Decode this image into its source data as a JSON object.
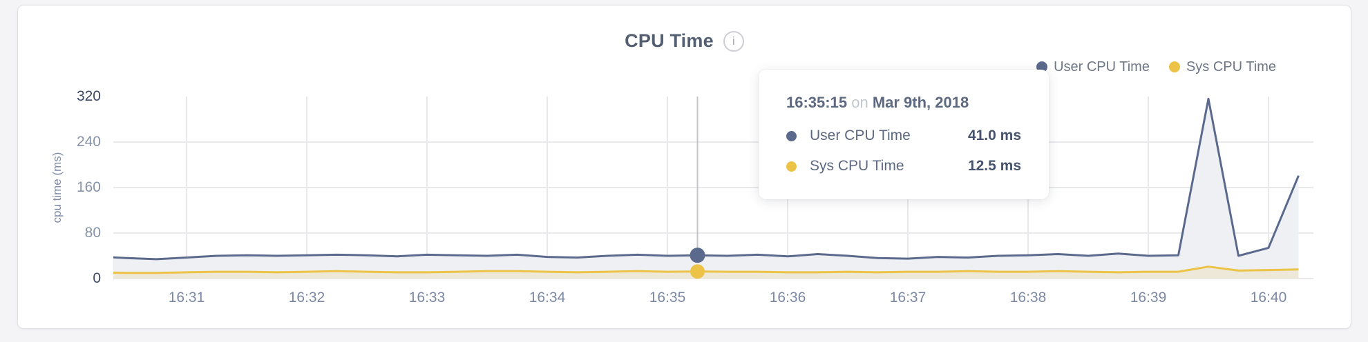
{
  "header": {
    "title": "CPU Time"
  },
  "legend": {
    "items": [
      {
        "label": "User CPU Time",
        "color": "#5b6a8c"
      },
      {
        "label": "Sys CPU Time",
        "color": "#ecc347"
      }
    ]
  },
  "y_axis": {
    "title": "cpu time (ms)",
    "ticks": [
      0,
      80,
      160,
      240,
      320
    ]
  },
  "x_axis": {
    "ticks": [
      "16:31",
      "16:32",
      "16:33",
      "16:34",
      "16:35",
      "16:36",
      "16:37",
      "16:38",
      "16:39",
      "16:40"
    ]
  },
  "tooltip": {
    "time": "16:35:15",
    "separator": "on",
    "date": "Mar 9th, 2018",
    "rows": [
      {
        "label": "User CPU Time",
        "value": "41.0 ms",
        "color": "#5b6a8c"
      },
      {
        "label": "Sys CPU Time",
        "value": "12.5 ms",
        "color": "#ecc347"
      }
    ]
  },
  "chart_data": {
    "type": "area",
    "title": "CPU Time",
    "ylabel": "cpu time (ms)",
    "ylim": [
      0,
      320
    ],
    "y_ticks": [
      0,
      80,
      160,
      240,
      320
    ],
    "x_tick_labels": [
      "16:31",
      "16:32",
      "16:33",
      "16:34",
      "16:35",
      "16:36",
      "16:37",
      "16:38",
      "16:39",
      "16:40"
    ],
    "date": "Mar 9th, 2018",
    "grid": true,
    "legend_position": "top-right",
    "times": [
      "16:30:15",
      "16:30:30",
      "16:30:45",
      "16:31:00",
      "16:31:15",
      "16:31:30",
      "16:31:45",
      "16:32:00",
      "16:32:15",
      "16:32:30",
      "16:32:45",
      "16:33:00",
      "16:33:15",
      "16:33:30",
      "16:33:45",
      "16:34:00",
      "16:34:15",
      "16:34:30",
      "16:34:45",
      "16:35:00",
      "16:35:15",
      "16:35:30",
      "16:35:45",
      "16:36:00",
      "16:36:15",
      "16:36:30",
      "16:36:45",
      "16:37:00",
      "16:37:15",
      "16:37:30",
      "16:37:45",
      "16:38:00",
      "16:38:15",
      "16:38:30",
      "16:38:45",
      "16:39:00",
      "16:39:15",
      "16:39:30",
      "16:39:45",
      "16:40:00",
      "16:40:15"
    ],
    "series": [
      {
        "name": "User CPU Time",
        "color": "#5b6a8c",
        "fill": "#eef0f4",
        "values": [
          39,
          36,
          34,
          37,
          40,
          41,
          40,
          41,
          42,
          41,
          39,
          42,
          41,
          40,
          42,
          38,
          37,
          40,
          42,
          40,
          41,
          40,
          42,
          39,
          43,
          40,
          36,
          35,
          38,
          37,
          40,
          41,
          43,
          40,
          44,
          40,
          41,
          316,
          40,
          54,
          181
        ]
      },
      {
        "name": "Sys CPU Time",
        "color": "#ecc347",
        "fill": "rgba(236,195,71,0.16)",
        "values": [
          11,
          10,
          10,
          11,
          12,
          12,
          11,
          12,
          13,
          12,
          11,
          11,
          12,
          13,
          13,
          12,
          11,
          12,
          13,
          12,
          12.5,
          12,
          12,
          11,
          11,
          12,
          11,
          12,
          12,
          13,
          12,
          12,
          13,
          12,
          11,
          12,
          12,
          21,
          14,
          15,
          16
        ]
      }
    ],
    "highlight": {
      "index": 20,
      "time": "16:35:15",
      "user_ms": 41.0,
      "sys_ms": 12.5
    }
  }
}
